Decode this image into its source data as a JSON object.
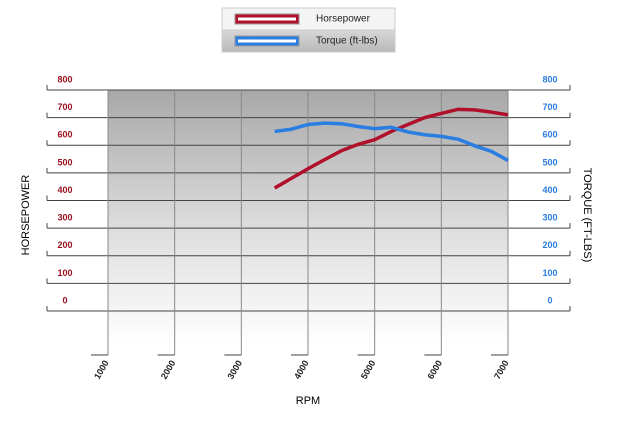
{
  "chart_data": {
    "type": "line",
    "x_label": "RPM",
    "y_label": "HORSEPOWER",
    "y2_label": "TORQUE (FT-LBS)",
    "x": [
      3500,
      3750,
      4000,
      4250,
      4500,
      4750,
      5000,
      5250,
      5500,
      5750,
      6000,
      6250,
      6500,
      6750,
      7000
    ],
    "series": [
      {
        "name": "Horsepower",
        "color": "#b0102a",
        "values": [
          445,
          480,
          515,
          548,
          580,
          603,
          620,
          650,
          675,
          700,
          715,
          730,
          728,
          720,
          710
        ]
      },
      {
        "name": "Torque (ft-lbs)",
        "color": "#2a7de1",
        "axis": "y2",
        "values": [
          650,
          658,
          675,
          680,
          678,
          668,
          660,
          665,
          648,
          638,
          632,
          622,
          598,
          578,
          545
        ]
      }
    ],
    "xlim": [
      1000,
      7000
    ],
    "xticks": [
      1000,
      2000,
      3000,
      4000,
      5000,
      6000,
      7000
    ],
    "ylim": [
      0,
      800
    ],
    "yticks": [
      0,
      100,
      200,
      300,
      400,
      500,
      600,
      700,
      800
    ],
    "y2lim": [
      0,
      800
    ],
    "y2ticks": [
      0,
      100,
      200,
      300,
      400,
      500,
      600,
      700,
      800
    ],
    "grid": true,
    "legend": "top"
  }
}
